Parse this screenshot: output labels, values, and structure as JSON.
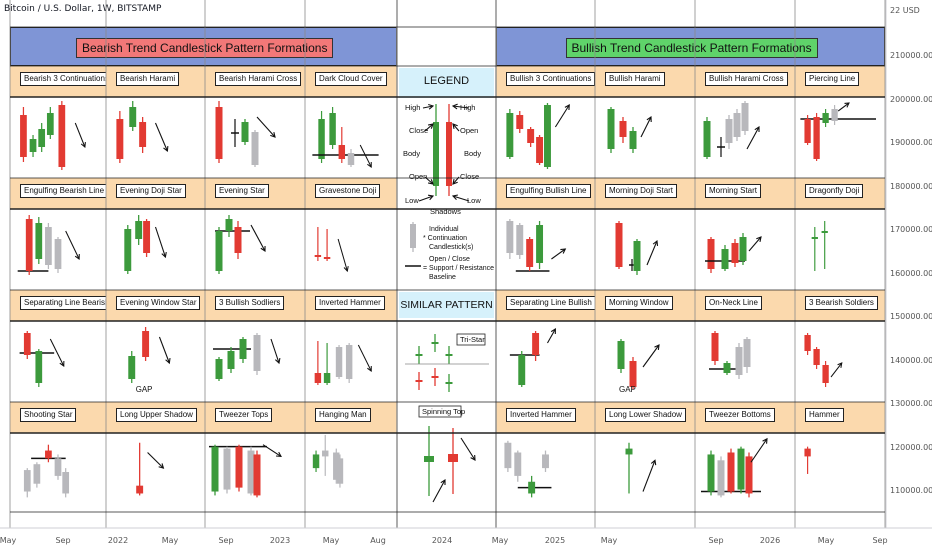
{
  "header": {
    "symbol": "Bitcoin / U.S. Dollar, 1W, BITSTAMP"
  },
  "price_axis": {
    "top": "22 USD",
    "labels": [
      "210000.00",
      "200000.00",
      "190000.00",
      "180000.00",
      "170000.00",
      "160000.00",
      "150000.00",
      "140000.00",
      "130000.00",
      "120000.00",
      "110000.00"
    ]
  },
  "time_axis": {
    "labels": [
      "May",
      "Sep",
      "2022",
      "May",
      "Sep",
      "2023",
      "May",
      "Aug",
      "2024",
      "May",
      "2025",
      "May",
      "Sep",
      "2026",
      "May",
      "Sep"
    ]
  },
  "titles": {
    "bearish": "Bearish Trend Candlestick Pattern Formations",
    "bullish": "Bullish Trend Candlestick Pattern Formations"
  },
  "bearish_patterns": [
    [
      "Bearish 3 Continuations",
      "Bearish Harami",
      "Bearish Harami Cross",
      "Dark Cloud Cover"
    ],
    [
      "Engulfing Bearish Line",
      "Evening Doji Star",
      "Evening Star",
      "Gravestone Doji"
    ],
    [
      "Separating Line Bearish",
      "Evening Window Star",
      "3 Bullish Sodliers",
      "Inverted Hammer"
    ],
    [
      "Shooting Star",
      "Long Upper Shadow",
      "Tweezer Tops",
      "Hanging Man"
    ]
  ],
  "bullish_patterns": [
    [
      "Bullish 3 Continuations",
      "Bullish Harami",
      "Bullish Harami Cross",
      "Piercing Line"
    ],
    [
      "Engulfing Bullish Line",
      "Morning Doji Start",
      "Morning Start",
      "Dragonfly Doji"
    ],
    [
      "Separating Line Bullish",
      "Morning Window",
      "On-Neck Line",
      "3 Bearish Soldiers"
    ],
    [
      "Inverted Hammer",
      "Long Lower Shadow",
      "Tweezer Bottoms",
      "Hammer"
    ]
  ],
  "gap_label": "GAP",
  "legend": {
    "title": "LEGEND",
    "high": "High",
    "close": "Close",
    "open": "Open",
    "body": "Body",
    "low": "Low",
    "shadows": "Shadows",
    "individual_1": "Individual",
    "individual_2": "* Continuation",
    "individual_3": "Candlestick(s)",
    "oc_1": "Open / Close",
    "oc_2": "= Support / Resistance",
    "oc_3": "Baseline"
  },
  "similar": {
    "title": "SIMILAR PATTERN",
    "tristar": "Tri-Star",
    "spinning": "Spinning Top"
  },
  "colors": {
    "green": "#3c9a3c",
    "red": "#e23a32",
    "gray": "#b8b8bc",
    "title_bg": "#7f95d6",
    "header_bg": "#fbd9ad",
    "legend_bg": "#d6f1fb",
    "bear_title_bg": "#f27878",
    "bull_title_bg": "#5fd36a"
  }
}
